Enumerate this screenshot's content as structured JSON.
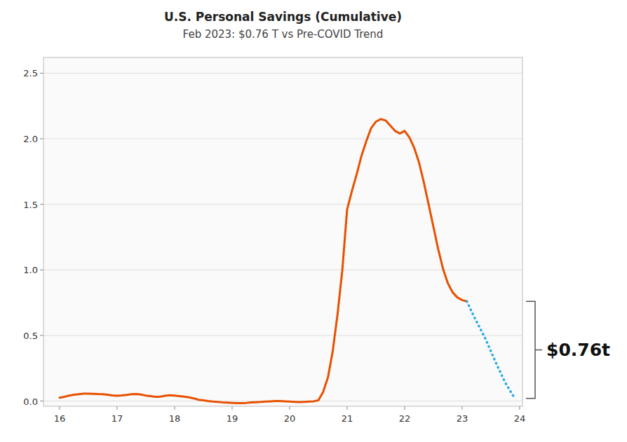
{
  "chart_data": {
    "type": "line",
    "title": "U.S. Personal Savings (Cumulative)",
    "subtitle": "Feb 2023: $0.76 T vs Pre-COVID Trend",
    "annotations": [
      "$0.76t"
    ],
    "xlim": [
      15.72,
      24.05
    ],
    "ylim": [
      -0.04,
      2.62
    ],
    "xticks": [
      16,
      17,
      18,
      19,
      20,
      21,
      22,
      23,
      24
    ],
    "yticks": [
      {
        "value": 0.0,
        "label": "0.0"
      },
      0.5,
      {
        "value": 1.0,
        "label": "1.0"
      },
      1.5,
      {
        "value": 2.0,
        "label": "2.0"
      },
      2.5
    ],
    "grid": true,
    "series": [
      {
        "color": "#E85000",
        "line_style": "solid",
        "x": [
          16.0,
          16.083,
          16.167,
          16.25,
          16.333,
          16.417,
          16.5,
          16.583,
          16.667,
          16.75,
          16.833,
          16.917,
          17.0,
          17.083,
          17.167,
          17.25,
          17.333,
          17.417,
          17.5,
          17.583,
          17.667,
          17.75,
          17.833,
          17.917,
          18.0,
          18.083,
          18.167,
          18.25,
          18.333,
          18.417,
          18.5,
          18.583,
          18.667,
          18.75,
          18.833,
          18.917,
          19.0,
          19.083,
          19.167,
          19.25,
          19.333,
          19.417,
          19.5,
          19.583,
          19.667,
          19.75,
          19.833,
          19.917,
          20.0,
          20.083,
          20.167,
          20.25,
          20.333,
          20.417,
          20.5,
          20.583,
          20.667,
          20.75,
          20.833,
          20.917,
          21.0,
          21.083,
          21.167,
          21.25,
          21.333,
          21.417,
          21.5,
          21.583,
          21.667,
          21.75,
          21.833,
          21.917,
          22.0,
          22.083,
          22.167,
          22.25,
          22.333,
          22.417,
          22.5,
          22.583,
          22.667,
          22.75,
          22.833,
          22.917,
          23.0,
          23.083
        ],
        "values": [
          0.025,
          0.032,
          0.042,
          0.048,
          0.052,
          0.056,
          0.056,
          0.055,
          0.053,
          0.052,
          0.048,
          0.043,
          0.04,
          0.043,
          0.047,
          0.052,
          0.053,
          0.049,
          0.042,
          0.037,
          0.032,
          0.034,
          0.04,
          0.044,
          0.042,
          0.037,
          0.033,
          0.028,
          0.02,
          0.01,
          0.005,
          0.0,
          -0.004,
          -0.007,
          -0.01,
          -0.012,
          -0.014,
          -0.016,
          -0.016,
          -0.014,
          -0.011,
          -0.009,
          -0.007,
          -0.004,
          -0.002,
          0.0,
          0.0,
          -0.002,
          -0.004,
          -0.006,
          -0.008,
          -0.006,
          -0.004,
          -0.002,
          0.005,
          0.07,
          0.18,
          0.38,
          0.66,
          1.0,
          1.46,
          1.6,
          1.73,
          1.87,
          1.98,
          2.08,
          2.13,
          2.15,
          2.14,
          2.1,
          2.06,
          2.04,
          2.06,
          2.01,
          1.93,
          1.82,
          1.67,
          1.5,
          1.33,
          1.16,
          1.01,
          0.9,
          0.83,
          0.79,
          0.77,
          0.76
        ]
      },
      {
        "color": "#29ABE2",
        "line_style": "dotted",
        "x": [
          23.083,
          23.2,
          23.4,
          23.6,
          23.75,
          23.917
        ],
        "values": [
          0.76,
          0.65,
          0.48,
          0.28,
          0.14,
          0.02
        ]
      }
    ]
  }
}
